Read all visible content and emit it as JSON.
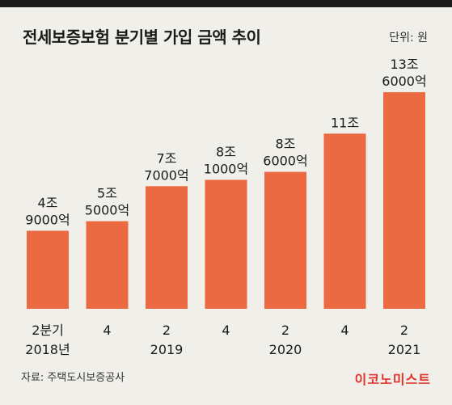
{
  "header": {
    "title": "전세보증보험 분기별 가입 금액 추이",
    "unit": "단위: 원"
  },
  "footer": {
    "source": "자료: 주택도시보증공사",
    "brand": "이코노미스트"
  },
  "colors": {
    "bar": "#ec6a42",
    "background": "#f1efe9",
    "text": "#1a1a1a",
    "brand": "#e0312a"
  },
  "chart_data": {
    "type": "bar",
    "title": "전세보증보험 분기별 가입 금액 추이",
    "unit_label": "단위: 원",
    "categories": [
      [
        "2분기",
        "2018년"
      ],
      [
        "4"
      ],
      [
        "2",
        "2019"
      ],
      [
        "4"
      ],
      [
        "2",
        "2020"
      ],
      [
        "4"
      ],
      [
        "2",
        "2021"
      ]
    ],
    "values": [
      4.9,
      5.5,
      7.7,
      8.1,
      8.6,
      11.0,
      13.6
    ],
    "value_unit": "조",
    "data_labels": [
      [
        "4조",
        "9000억"
      ],
      [
        "5조",
        "5000억"
      ],
      [
        "7조",
        "7000억"
      ],
      [
        "8조",
        "1000억"
      ],
      [
        "8조",
        "6000억"
      ],
      [
        "11조"
      ],
      [
        "13조",
        "6000억"
      ]
    ],
    "ylim": [
      0,
      14
    ],
    "grid": false,
    "legend": "none"
  }
}
